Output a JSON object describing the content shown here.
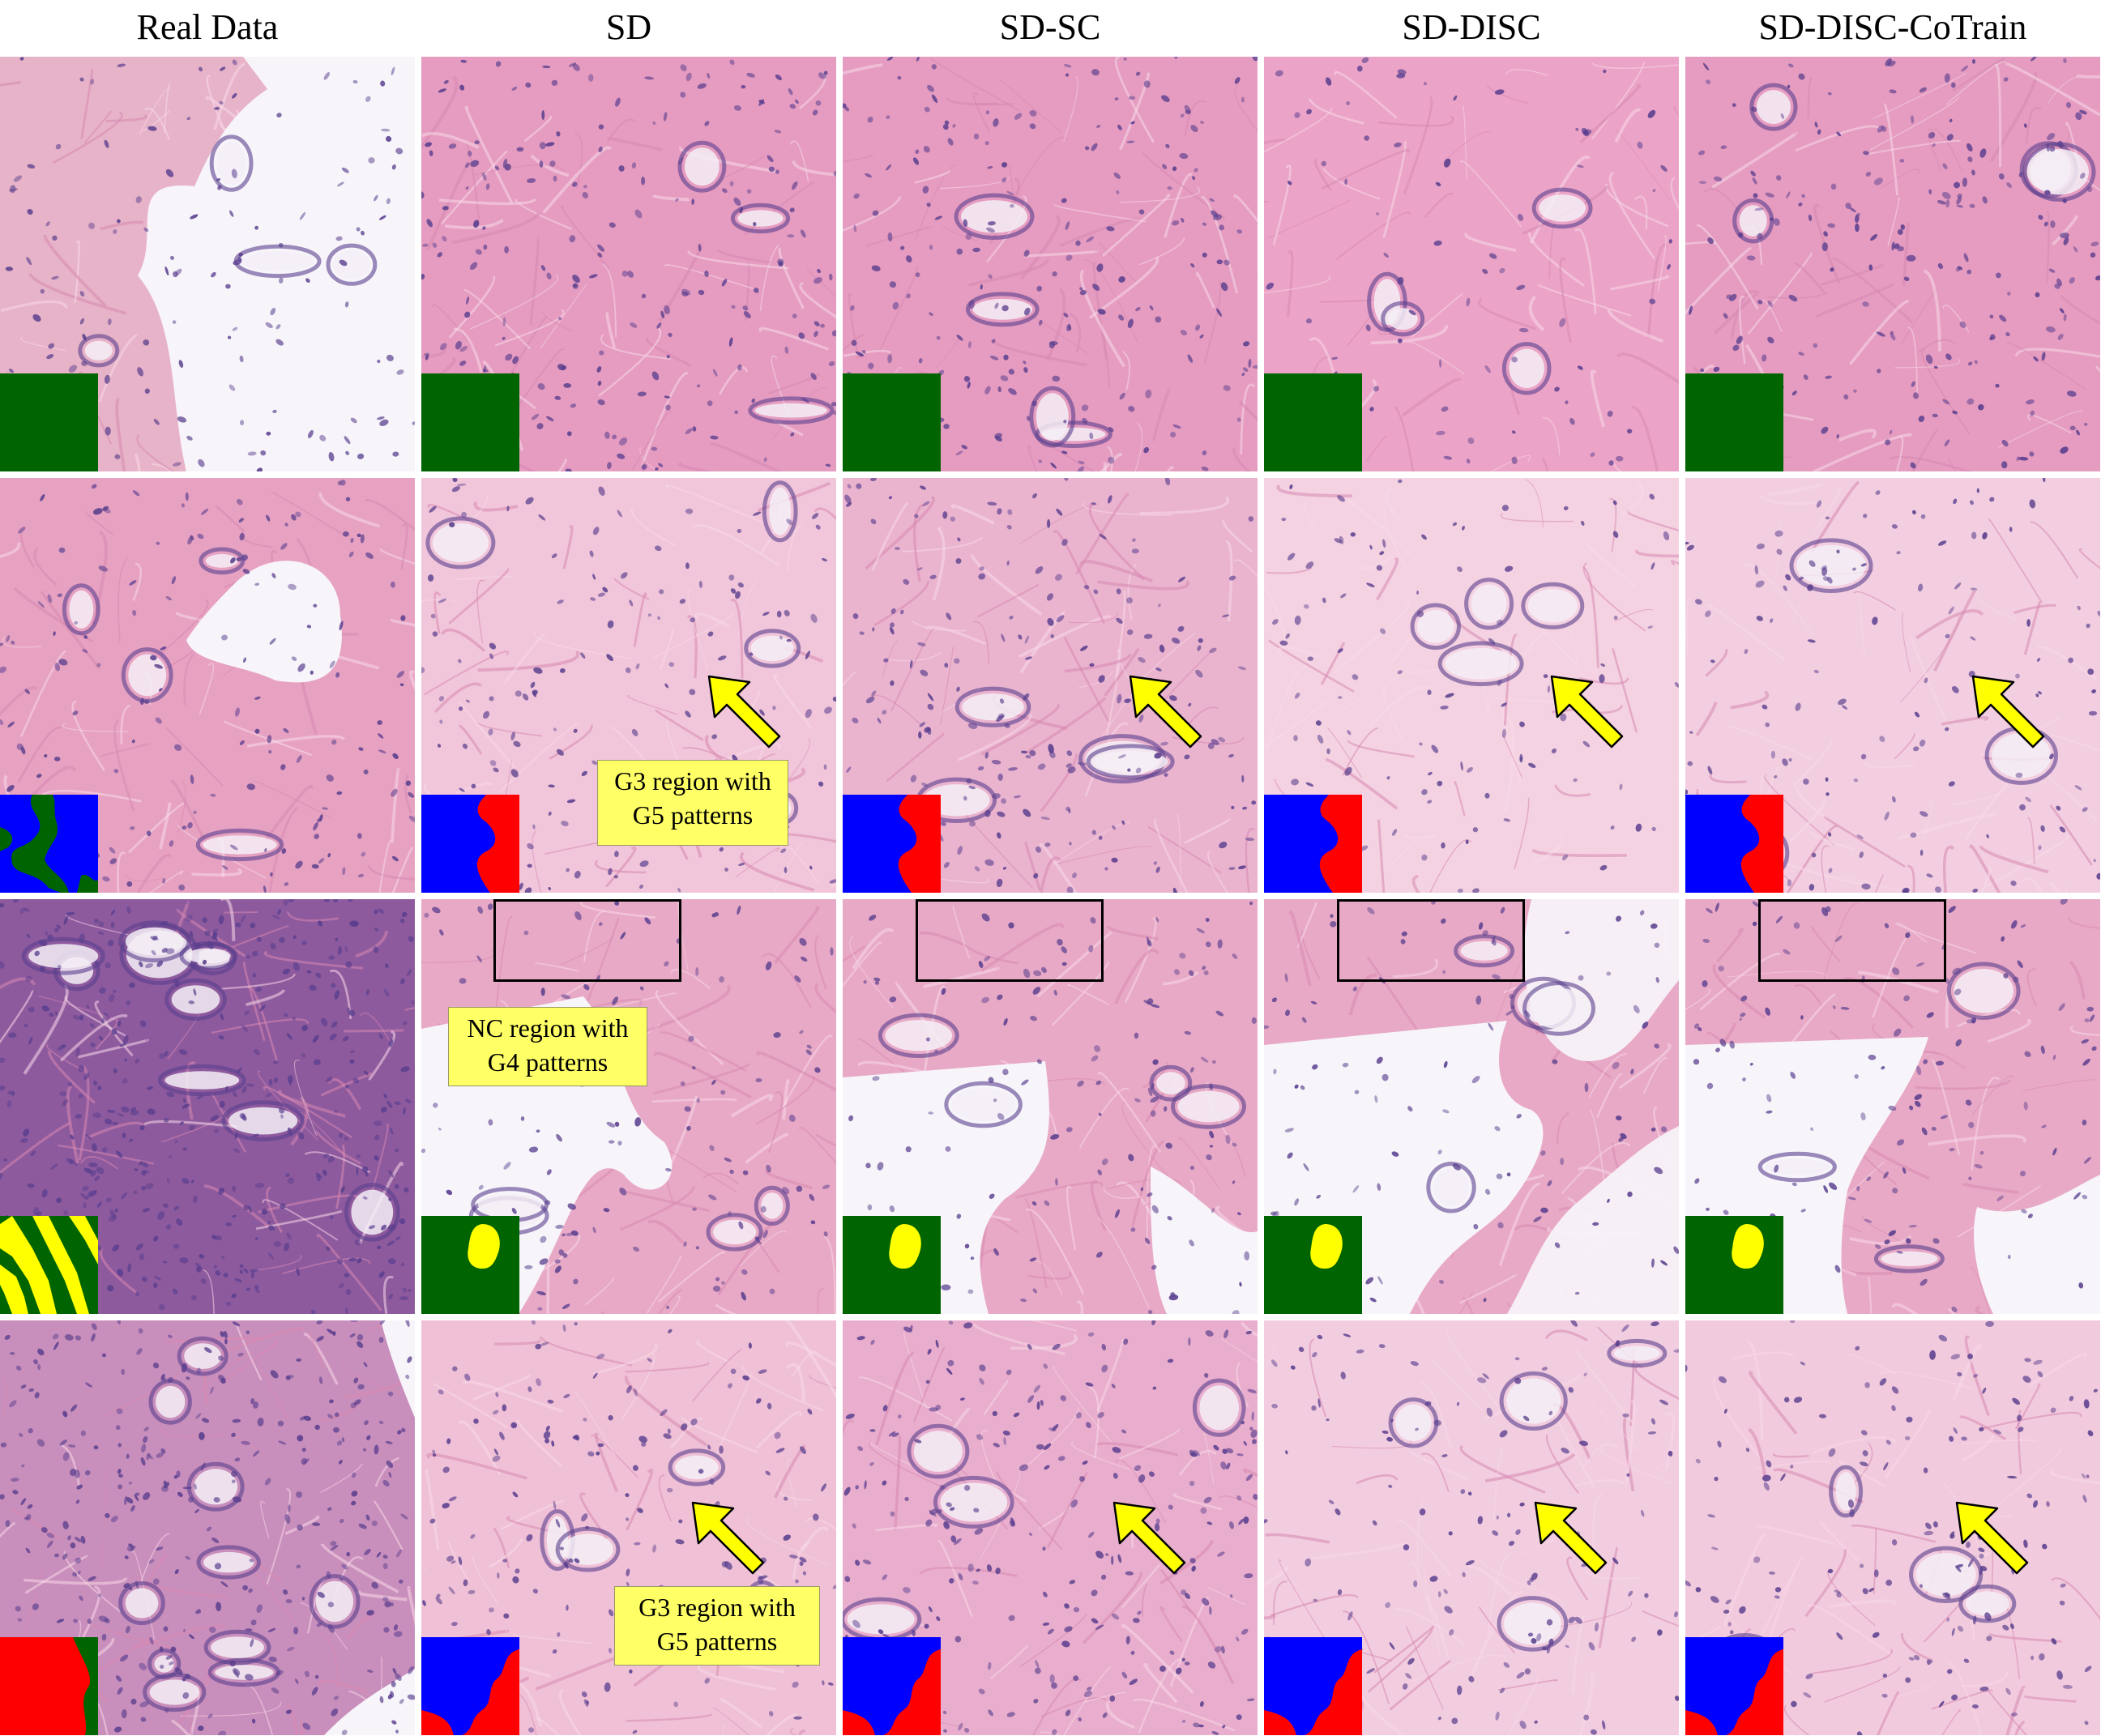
{
  "columns": [
    {
      "label": "Real Data"
    },
    {
      "label": "SD"
    },
    {
      "label": "SD-SC"
    },
    {
      "label": "SD-DISC"
    },
    {
      "label": "SD-DISC-CoTrain"
    }
  ],
  "annotations": {
    "row2_note": {
      "line1": "G3 region with",
      "line2": "G5 patterns"
    },
    "row3_note": {
      "line1": "NC region with",
      "line2": "G4 patterns"
    },
    "row4_note": {
      "line1": "G3 region with",
      "line2": "G5 patterns"
    }
  },
  "colors": {
    "mask_green": "#006400",
    "mask_blue": "#0000ff",
    "mask_red": "#ff0000",
    "mask_yellow": "#ffff00",
    "tissue_pink": "#e9a6c4",
    "nucleus_purple": "#5a3f8e",
    "arrow_yellow": "#ffff00"
  }
}
